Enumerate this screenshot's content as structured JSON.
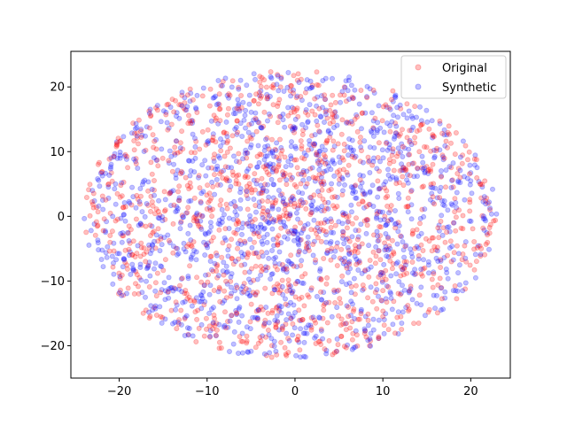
{
  "chart_data": {
    "type": "scatter",
    "title": "",
    "xlabel": "",
    "ylabel": "",
    "xlim": [
      -25.5,
      24.5
    ],
    "ylim": [
      -25.0,
      25.5
    ],
    "xticks": [
      -20,
      -10,
      0,
      10,
      20
    ],
    "yticks": [
      -20,
      -10,
      0,
      10,
      20
    ],
    "grid": false,
    "legend_position": "top-right",
    "distribution": "dense overlapping points filling a roughly elliptical cloud centered near (0, 0), x from about -24 to 23, y from about -22 to 23",
    "series": [
      {
        "name": "Original",
        "color": "#ff0000",
        "alpha": 0.25
      },
      {
        "name": "Synthetic",
        "color": "#0000ff",
        "alpha": 0.25
      }
    ]
  }
}
